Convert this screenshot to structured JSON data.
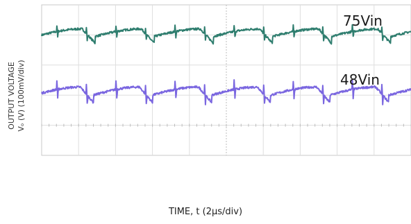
{
  "chart_data": {
    "type": "line",
    "title": "",
    "xlabel": "TIME, t (2μs/div)",
    "ylabel_lines": [
      "OUTPUT VOLTAGE",
      "Vₒ (V) (100mV/div)"
    ],
    "x_unit": "div",
    "y_unit": "div",
    "xlim": [
      0,
      10
    ],
    "ylim": [
      0,
      5
    ],
    "grid": true,
    "period_div": 1.6,
    "series": [
      {
        "name": "75Vin",
        "color": "#2e7d6e",
        "baseline_div": 3.95,
        "ripple_div": 0.25,
        "spike_div": 0.2
      },
      {
        "name": "48Vin",
        "color": "#7a66e0",
        "baseline_div": 2.0,
        "ripple_div": 0.27,
        "spike_div": 0.3
      }
    ]
  }
}
